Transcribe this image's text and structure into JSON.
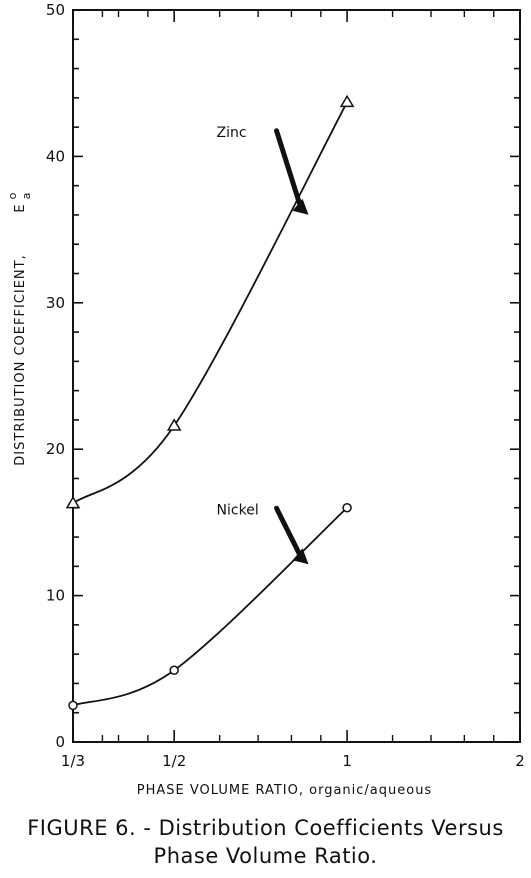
{
  "chart_data": {
    "type": "line",
    "xlabel": "PHASE VOLUME RATIO, organic/aqueous",
    "ylabel": "DISTRIBUTION  COEFFICIENT,",
    "ylabel_symbol": "E",
    "ylabel_superscript": "o",
    "ylabel_subscript": "a",
    "x_tick_labels": [
      "1/3",
      "1/2",
      "1",
      "2"
    ],
    "x_scale": "log",
    "xlim": [
      0.3333,
      2
    ],
    "y_ticks": [
      0,
      10,
      20,
      30,
      40,
      50
    ],
    "ylim": [
      0,
      50
    ],
    "grid": false,
    "series": [
      {
        "name": "Zinc",
        "marker": "triangle",
        "x": [
          0.3333,
          0.5,
          1
        ],
        "y": [
          16.3,
          21.6,
          43.7
        ]
      },
      {
        "name": "Nickel",
        "marker": "circle",
        "x": [
          0.3333,
          0.5,
          1
        ],
        "y": [
          2.5,
          4.9,
          16.0
        ]
      }
    ]
  },
  "caption": {
    "line1": "FIGURE 6. - Distribution Coefficients Versus",
    "line2": "Phase Volume Ratio."
  }
}
